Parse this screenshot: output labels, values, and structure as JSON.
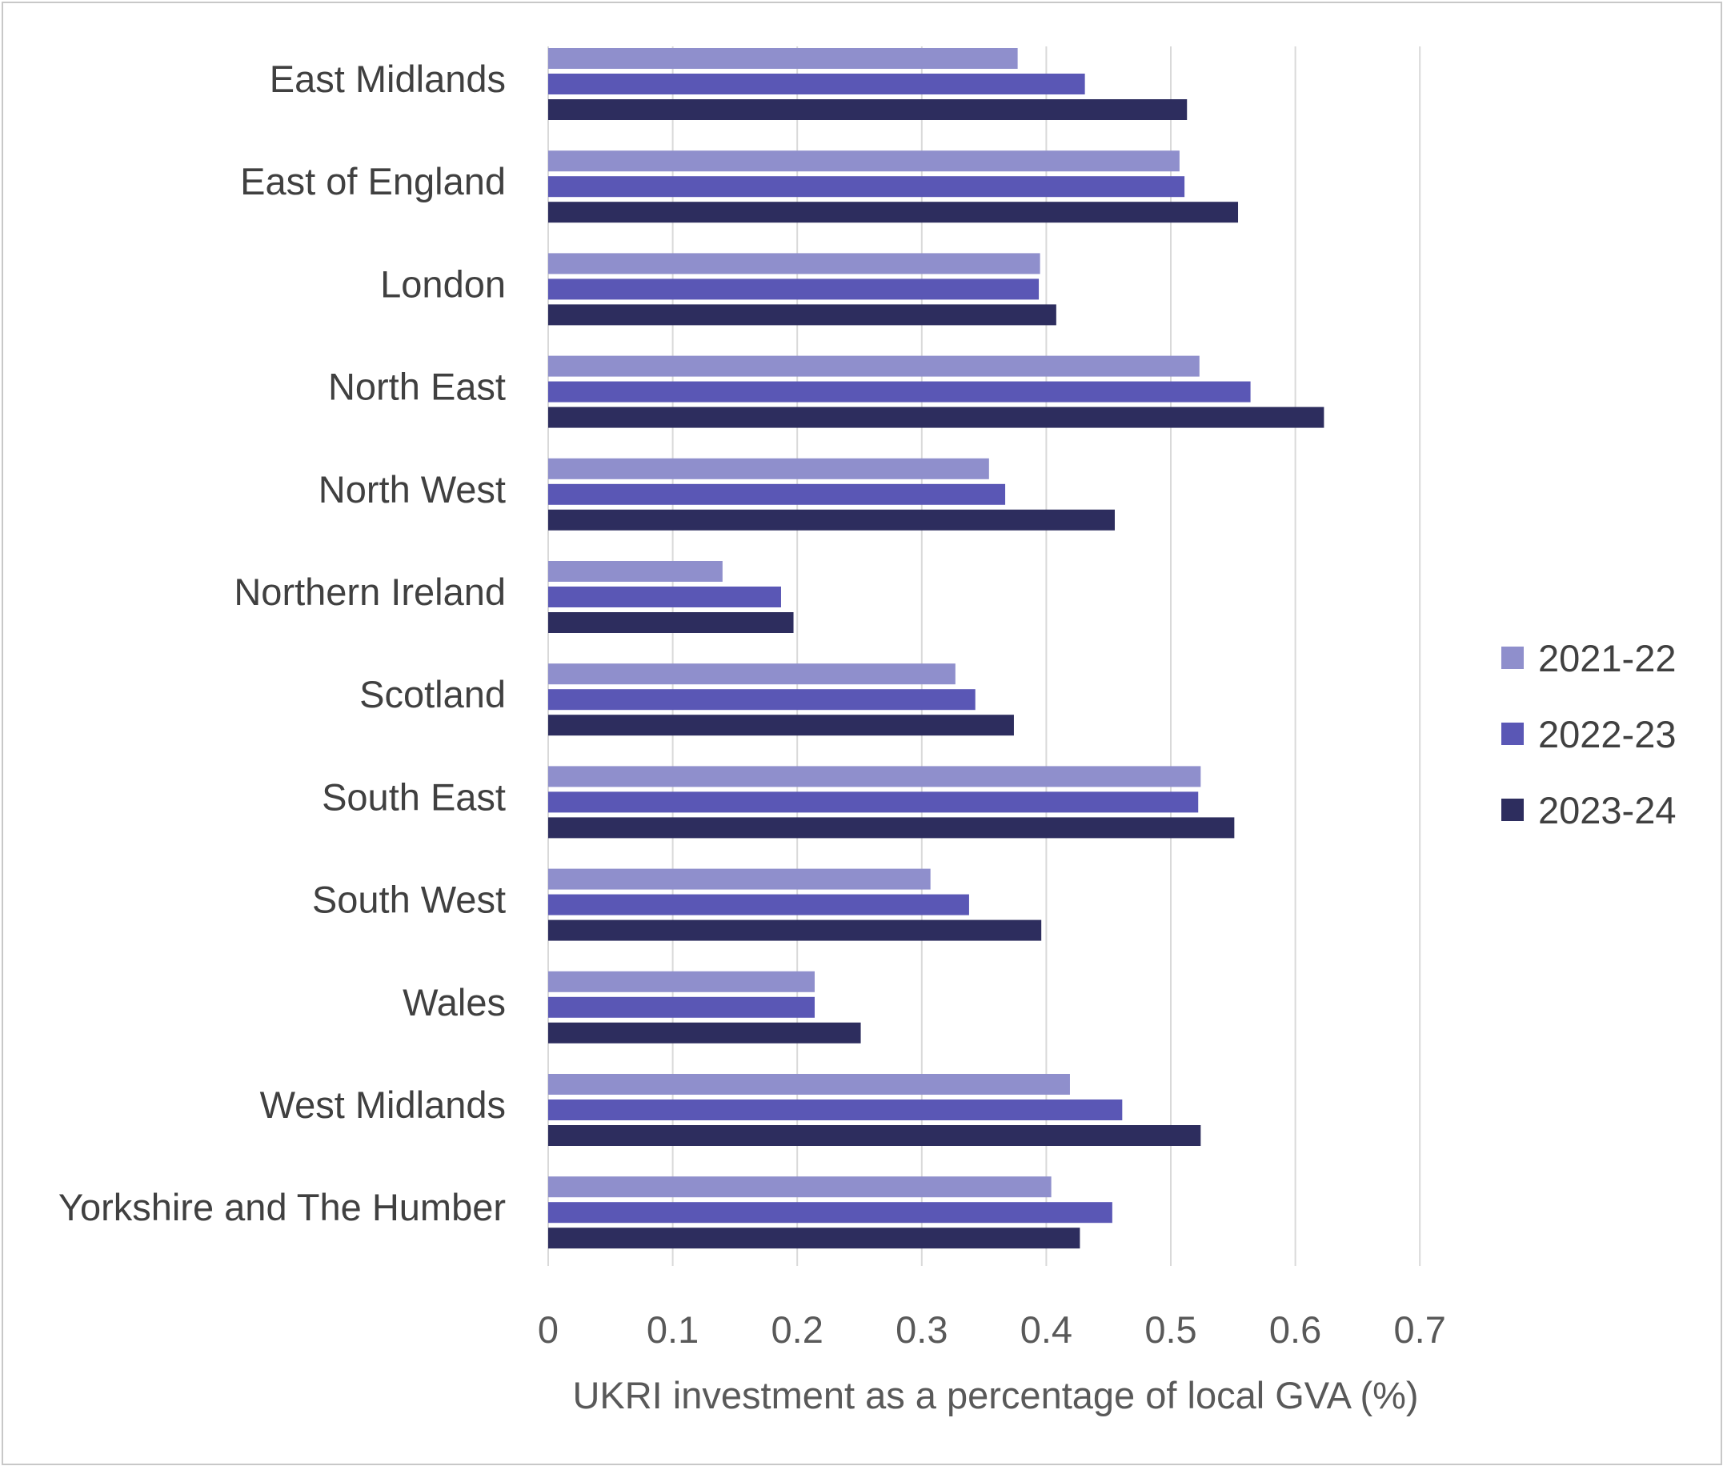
{
  "chart_data": {
    "type": "bar",
    "orientation": "horizontal",
    "categories": [
      "East Midlands",
      "East of England",
      "London",
      "North East",
      "North West",
      "Northern Ireland",
      "Scotland",
      "South East",
      "South West",
      "Wales",
      "West Midlands",
      "Yorkshire and The Humber"
    ],
    "series": [
      {
        "name": "2021-22",
        "color": "#8f8fcc",
        "values": [
          0.377,
          0.507,
          0.395,
          0.523,
          0.354,
          0.14,
          0.327,
          0.524,
          0.307,
          0.214,
          0.419,
          0.404
        ]
      },
      {
        "name": "2022-23",
        "color": "#5a57b5",
        "values": [
          0.431,
          0.511,
          0.394,
          0.564,
          0.367,
          0.187,
          0.343,
          0.522,
          0.338,
          0.214,
          0.461,
          0.453
        ]
      },
      {
        "name": "2023-24",
        "color": "#2d2d5e",
        "values": [
          0.513,
          0.554,
          0.408,
          0.623,
          0.455,
          0.197,
          0.374,
          0.551,
          0.396,
          0.251,
          0.524,
          0.427
        ]
      }
    ],
    "xlabel": "UKRI investment as a percentage of local GVA (%)",
    "xlim": [
      0,
      0.7
    ],
    "xticks": [
      "0",
      "0.1",
      "0.2",
      "0.3",
      "0.4",
      "0.5",
      "0.6",
      "0.7"
    ],
    "grid": "vertical",
    "legend_position": "right"
  }
}
